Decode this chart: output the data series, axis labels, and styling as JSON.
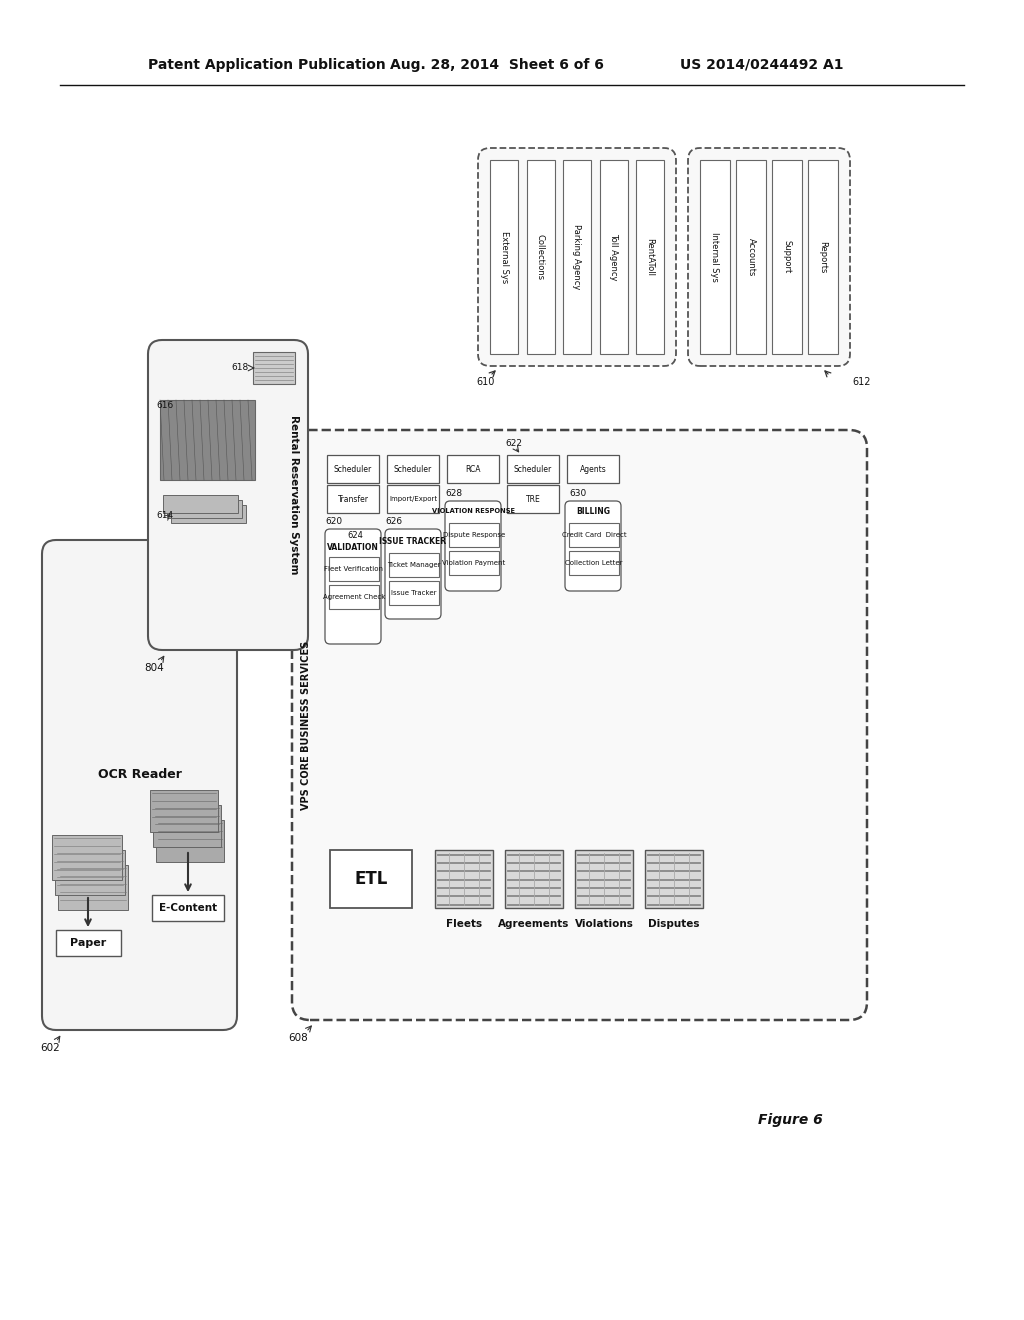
{
  "bg_color": "#ffffff",
  "header_left": "Patent Application Publication",
  "header_mid": "Aug. 28, 2014  Sheet 6 of 6",
  "header_right": "US 2014/0244492 A1",
  "figure_label": "Figure 6",
  "ext_items": [
    "External Sys",
    "Collections",
    "Parking Agency",
    "Toll Agency",
    "RentAToll"
  ],
  "int_items": [
    "Internal Sys",
    "Accounts",
    "Support",
    "Reports"
  ],
  "vps_label": "VPS CORE BUSINESS SERVICES",
  "col1_top": [
    "Scheduler",
    "Transfer"
  ],
  "col2_top": [
    "Scheduler",
    "Import/Export"
  ],
  "col3_top": [
    "RCA"
  ],
  "col4_top": [
    "Scheduler",
    "TRE"
  ],
  "col5_top": [
    "Agents"
  ],
  "validation_items": [
    "VALIDATION",
    "Fleet Verification",
    "Agreement Check"
  ],
  "issue_items": [
    "ISSUE TRACKER",
    "Ticket Manager",
    "Issue Tracker"
  ],
  "violation_items": [
    "VIOLATION RESPONSE",
    "Dispute Response",
    "Violation Payment"
  ],
  "billing_items": [
    "BILLING",
    "Credit Card  Direct",
    "Collection Letter"
  ],
  "bottom_labels": [
    "Fleets",
    "Agreements",
    "Violations",
    "Disputes"
  ],
  "ref_620": "620",
  "ref_622": "622",
  "ref_624": "624",
  "ref_626": "626",
  "ref_628": "628",
  "ref_630": "630",
  "ref_608": "608",
  "ref_610": "610",
  "ref_612": "612",
  "ref_602": "602",
  "ref_804": "804",
  "ref_614": "614",
  "ref_616": "616",
  "ref_618": "618"
}
